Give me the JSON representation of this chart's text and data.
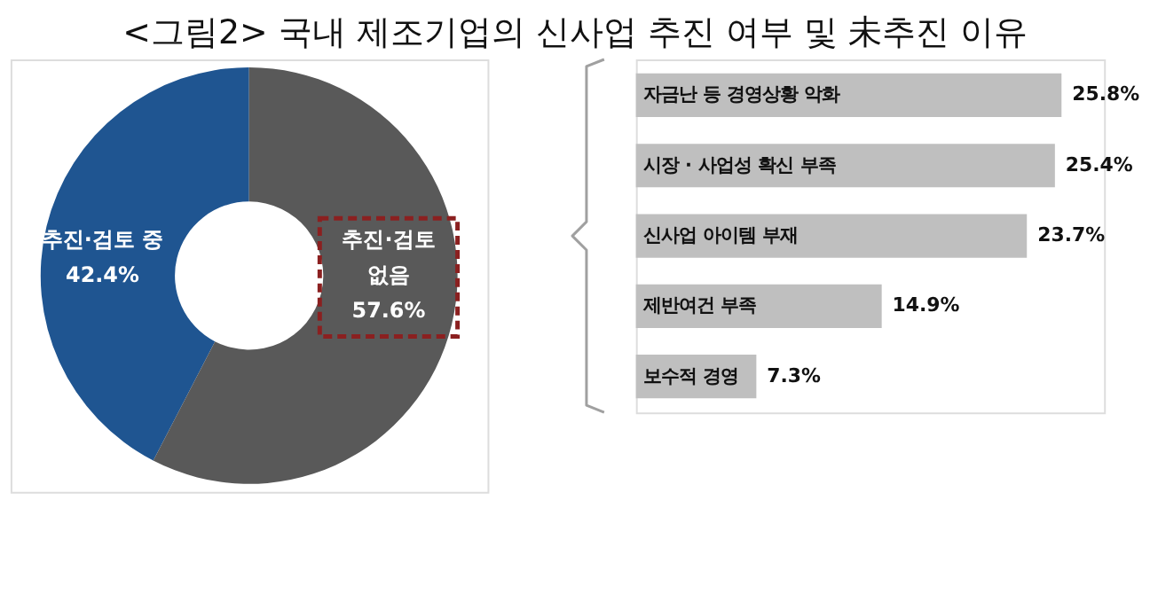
{
  "chart_data": [
    {
      "type": "donut",
      "title": "<그림2> 국내 제조기업의 신사업 추진 여부 및 未추진 이유",
      "categories": [
        "추진·검토 중",
        "추진·검토 없음"
      ],
      "values": [
        42.4,
        57.6
      ],
      "colors": [
        "#1f5591",
        "#595959"
      ],
      "value_labels": [
        "42.4%",
        "57.6%"
      ]
    },
    {
      "type": "bar",
      "orientation": "horizontal",
      "categories": [
        "자금난 등 경영상황 악화",
        "시장 · 사업성 확신 부족",
        "신사업 아이템 부재",
        "제반여건 부족",
        "보수적 경영"
      ],
      "values": [
        25.8,
        25.4,
        23.7,
        14.9,
        7.3
      ],
      "value_labels": [
        "25.8%",
        "25.4%",
        "23.7%",
        "14.9%",
        "7.3%"
      ],
      "color": "#bfbfbf"
    }
  ]
}
